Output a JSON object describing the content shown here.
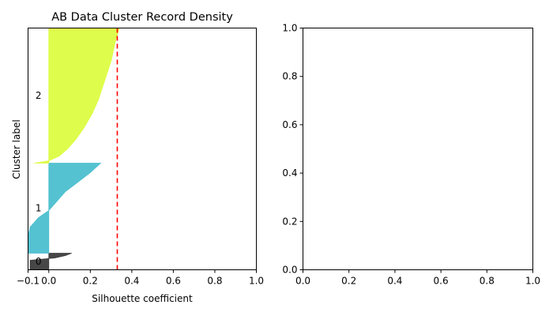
{
  "chart_data": [
    {
      "type": "area",
      "title": "AB Data Cluster Record Density",
      "xlabel": "Silhouette coefficient",
      "ylabel": "Cluster label",
      "xlim": [
        -0.1,
        1.0
      ],
      "xticks": [
        -0.1,
        0.0,
        0.2,
        0.4,
        0.6,
        0.8,
        1.0
      ],
      "xtick_labels": [
        "−0.1",
        "0.0",
        "0.2",
        "0.4",
        "0.6",
        "0.8",
        "1.0"
      ],
      "grid": false,
      "average_silhouette": 0.33,
      "average_line_color": "#ff0000",
      "clusters": [
        {
          "label": "0",
          "color": "#3d3d3d",
          "y_range": [
            0,
            7
          ],
          "silhouette_values": [
            [
              0,
              -0.09
            ],
            [
              2,
              -0.09
            ],
            [
              4,
              -0.09
            ],
            [
              5,
              0.03
            ],
            [
              6,
              0.08
            ],
            [
              7,
              0.11
            ]
          ]
        },
        {
          "label": "1",
          "color": "#4bbfcf",
          "y_range": [
            7,
            45
          ],
          "silhouette_values": [
            [
              7,
              -0.1
            ],
            [
              10,
              -0.1
            ],
            [
              14,
              -0.1
            ],
            [
              18,
              -0.09
            ],
            [
              22,
              -0.05
            ],
            [
              25,
              0.0
            ],
            [
              29,
              0.04
            ],
            [
              33,
              0.08
            ],
            [
              37,
              0.14
            ],
            [
              41,
              0.2
            ],
            [
              45,
              0.25
            ]
          ]
        },
        {
          "label": "2",
          "color": "#dcfc42",
          "y_range": [
            45,
            102
          ],
          "silhouette_values": [
            [
              45,
              -0.07
            ],
            [
              46,
              0.0
            ],
            [
              48,
              0.05
            ],
            [
              51,
              0.09
            ],
            [
              55,
              0.13
            ],
            [
              60,
              0.17
            ],
            [
              66,
              0.21
            ],
            [
              72,
              0.24
            ],
            [
              80,
              0.27
            ],
            [
              88,
              0.3
            ],
            [
              96,
              0.32
            ],
            [
              102,
              0.34
            ]
          ]
        }
      ]
    },
    {
      "type": "scatter",
      "xlim": [
        0,
        1.0
      ],
      "ylim": [
        0,
        1.0
      ],
      "xtick_labels": [
        "0.0",
        "0.2",
        "0.4",
        "0.6",
        "0.8",
        "1.0"
      ],
      "ytick_labels": [
        "0.0",
        "0.2",
        "0.4",
        "0.6",
        "0.8",
        "1.0"
      ],
      "grid": false,
      "series": []
    }
  ]
}
